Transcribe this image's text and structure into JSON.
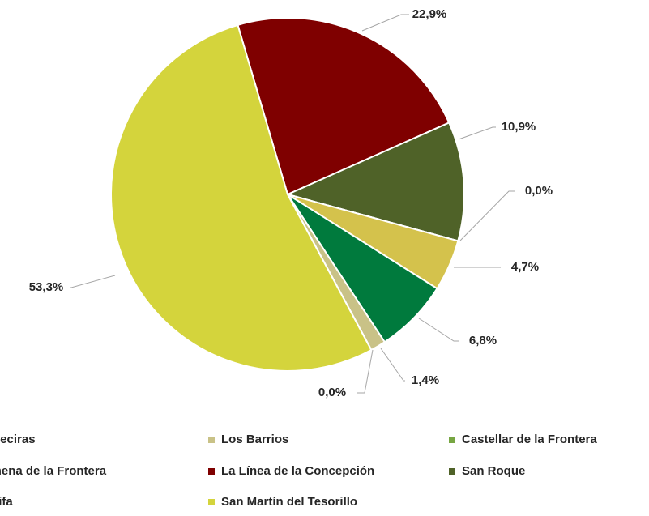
{
  "chart_data": {
    "type": "pie",
    "categories": [
      "La Línea de la Concepción",
      "San Roque",
      "Castellar de la Frontera",
      "Jimena de la Frontera",
      "Algeciras",
      "Los Barrios",
      "Tarifa",
      "San Martín del Tesorillo"
    ],
    "values": [
      22.9,
      10.9,
      0.0,
      4.7,
      6.8,
      1.4,
      0.0,
      53.3
    ],
    "value_labels": [
      "22,9%",
      "10,9%",
      "0,0%",
      "4,7%",
      "6,8%",
      "1,4%",
      "0,0%",
      "53,3%"
    ],
    "colors": [
      "#7f0000",
      "#4f6228",
      "#77a642",
      "#d4c24c",
      "#007a3d",
      "#c9c287",
      "#b5a642",
      "#d4d43c"
    ]
  }
}
